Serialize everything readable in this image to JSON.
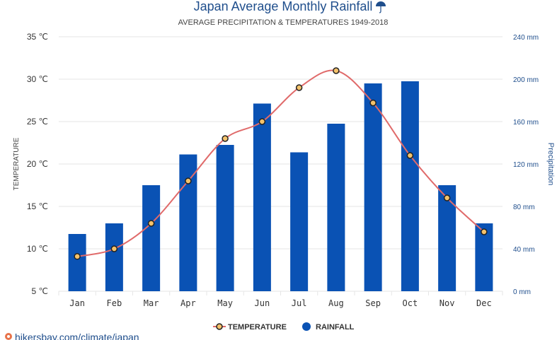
{
  "title": "Japan Average Monthly Rainfall",
  "subtitle": "AVERAGE PRECIPITATION & TEMPERATURES 1949-2018",
  "source_text": "hikersbay.com/climate/japan",
  "colors": {
    "title": "#1f4e8c",
    "rainfall_bar": "#0a52b4",
    "temperature_line": "#e06a6a",
    "temperature_marker_fill": "#f4c26b",
    "temperature_marker_stroke": "#222222",
    "source_icon": "#e8734a"
  },
  "chart_data": {
    "type": "bar",
    "title": "Japan Average Monthly Rainfall",
    "subtitle": "AVERAGE PRECIPITATION & TEMPERATURES 1949-2018",
    "categories": [
      "Jan",
      "Feb",
      "Mar",
      "Apr",
      "May",
      "Jun",
      "Jul",
      "Aug",
      "Sep",
      "Oct",
      "Nov",
      "Dec"
    ],
    "series": [
      {
        "name": "RAINFALL",
        "type": "bar",
        "axis": "right",
        "unit": "mm",
        "values": [
          54,
          64,
          100,
          129,
          138,
          177,
          131,
          158,
          196,
          198,
          100,
          64
        ]
      },
      {
        "name": "TEMPERATURE",
        "type": "line",
        "axis": "left",
        "unit": "℃",
        "values": [
          9.1,
          10.0,
          13.0,
          18.0,
          23.0,
          25.0,
          29.0,
          31.0,
          27.2,
          21.0,
          16.0,
          12.0
        ]
      }
    ],
    "ylabel": "TEMPERATURE",
    "y2label": "Precipitation",
    "ylim": [
      5,
      35
    ],
    "y2lim": [
      0,
      240
    ],
    "yticks": [
      "35 ℃",
      "30 ℃",
      "25 ℃",
      "20 ℃",
      "15 ℃",
      "10 ℃",
      "5 ℃"
    ],
    "y2ticks": [
      "240 mm",
      "200 mm",
      "160 mm",
      "120 mm",
      "80 mm",
      "40 mm",
      "0 mm"
    ],
    "grid": true,
    "legend": {
      "position": "bottom",
      "entries": [
        "TEMPERATURE",
        "RAINFALL"
      ]
    }
  }
}
